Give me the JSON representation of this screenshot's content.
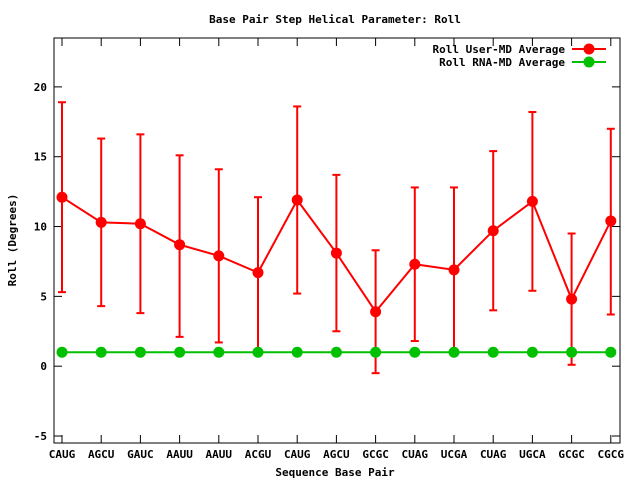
{
  "chart_data": {
    "type": "line",
    "title": "Base Pair Step Helical Parameter: Roll",
    "xlabel": "Sequence Base Pair",
    "ylabel": "Roll (Degrees)",
    "categories": [
      "CAUG",
      "AGCU",
      "GAUC",
      "AAUU",
      "AAUU",
      "ACGU",
      "CAUG",
      "AGCU",
      "GCGC",
      "CUAG",
      "UCGA",
      "CUAG",
      "UGCA",
      "GCGC",
      "CGCG"
    ],
    "ylim": [
      -5.5,
      23.5
    ],
    "yticks": [
      -5,
      0,
      5,
      10,
      15,
      20
    ],
    "legend_position": "top-right",
    "series": [
      {
        "name": "Roll User-MD Average",
        "color": "#ff0000",
        "values": [
          12.1,
          10.3,
          10.2,
          8.7,
          7.9,
          6.7,
          11.9,
          8.1,
          3.9,
          7.3,
          6.9,
          9.7,
          11.8,
          4.8,
          10.4
        ],
        "error_low": [
          5.3,
          4.3,
          3.8,
          2.1,
          1.7,
          0.9,
          5.2,
          2.5,
          -0.5,
          1.8,
          1.0,
          4.0,
          5.4,
          0.1,
          3.7
        ],
        "error_high": [
          18.9,
          16.3,
          16.6,
          15.1,
          14.1,
          12.1,
          18.6,
          13.7,
          8.3,
          12.8,
          12.8,
          15.4,
          18.2,
          9.5,
          17.0
        ]
      },
      {
        "name": "Roll RNA-MD Average",
        "color": "#00c000",
        "values": [
          1.0,
          1.0,
          1.0,
          1.0,
          1.0,
          1.0,
          1.0,
          1.0,
          1.0,
          1.0,
          1.0,
          1.0,
          1.0,
          1.0,
          1.0
        ]
      }
    ]
  }
}
